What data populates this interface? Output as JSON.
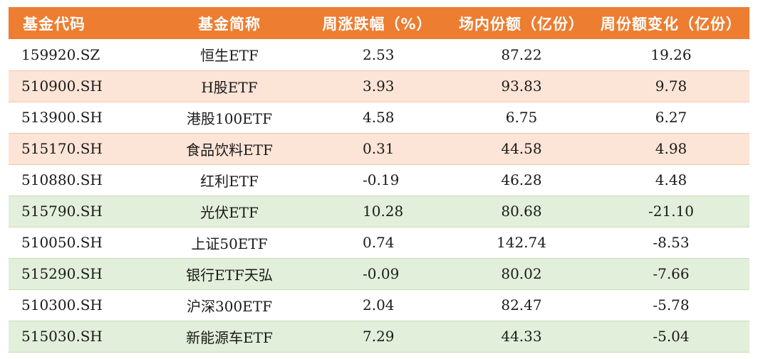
{
  "table": {
    "headers": [
      "基金代码",
      "基金简称",
      "周涨跌幅（%）",
      "场内份额（亿份）",
      "周份额变化（亿份）"
    ],
    "rows": [
      {
        "code": "159920.SZ",
        "name": "恒生ETF",
        "weekly_change_pct": "2.53",
        "onexchange_shares": "87.22",
        "weekly_share_change": "19.26",
        "tint": "white"
      },
      {
        "code": "510900.SH",
        "name": "H股ETF",
        "weekly_change_pct": "3.93",
        "onexchange_shares": "93.83",
        "weekly_share_change": "9.78",
        "tint": "orange"
      },
      {
        "code": "513900.SH",
        "name": "港股100ETF",
        "weekly_change_pct": "4.58",
        "onexchange_shares": "6.75",
        "weekly_share_change": "6.27",
        "tint": "white"
      },
      {
        "code": "515170.SH",
        "name": "食品饮料ETF",
        "weekly_change_pct": "0.31",
        "onexchange_shares": "44.58",
        "weekly_share_change": "4.98",
        "tint": "orange"
      },
      {
        "code": "510880.SH",
        "name": "红利ETF",
        "weekly_change_pct": "-0.19",
        "onexchange_shares": "46.28",
        "weekly_share_change": "4.48",
        "tint": "white"
      },
      {
        "code": "515790.SH",
        "name": "光伏ETF",
        "weekly_change_pct": "10.28",
        "onexchange_shares": "80.68",
        "weekly_share_change": "-21.10",
        "tint": "green"
      },
      {
        "code": "510050.SH",
        "name": "上证50ETF",
        "weekly_change_pct": "0.74",
        "onexchange_shares": "142.74",
        "weekly_share_change": "-8.53",
        "tint": "white"
      },
      {
        "code": "515290.SH",
        "name": "银行ETF天弘",
        "weekly_change_pct": "-0.09",
        "onexchange_shares": "80.02",
        "weekly_share_change": "-7.66",
        "tint": "green"
      },
      {
        "code": "510300.SH",
        "name": "沪深300ETF",
        "weekly_change_pct": "2.04",
        "onexchange_shares": "82.47",
        "weekly_share_change": "-5.78",
        "tint": "white"
      },
      {
        "code": "515030.SH",
        "name": "新能源车ETF",
        "weekly_change_pct": "7.29",
        "onexchange_shares": "44.33",
        "weekly_share_change": "-5.04",
        "tint": "green"
      }
    ]
  },
  "colors": {
    "header_bg": "#ed7d31",
    "inflow_row": "#fce4d6",
    "outflow_row": "#e2efda"
  }
}
